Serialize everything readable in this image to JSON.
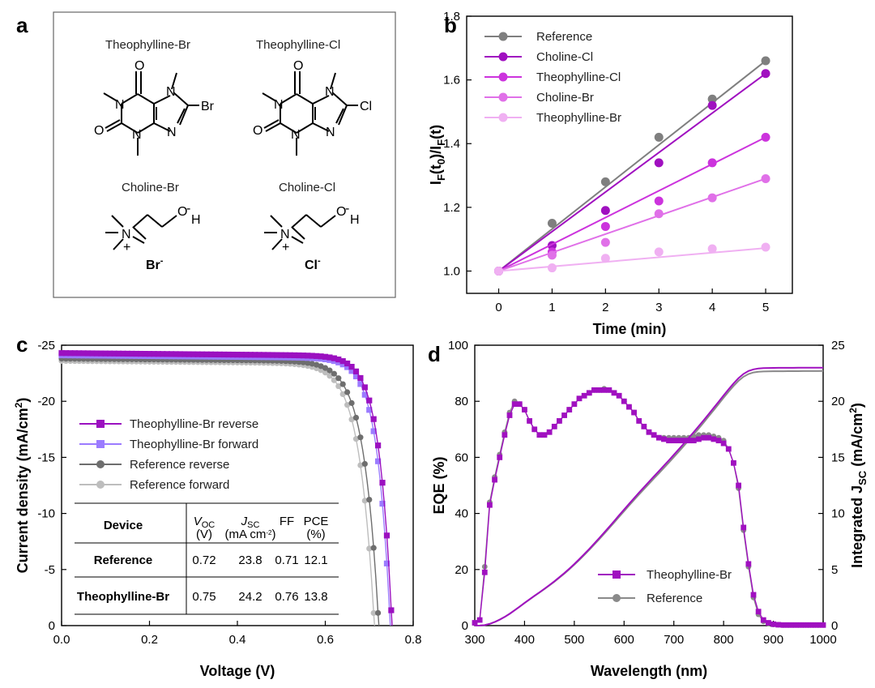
{
  "panels": {
    "a": "a",
    "b": "b",
    "c": "c",
    "d": "d"
  },
  "molecules": {
    "theo_br": {
      "name": "Theophylline-Br",
      "atoms": {
        "o_top": "O",
        "o_left": "O",
        "n1": "N",
        "n3": "N",
        "n7": "N",
        "n9": "N",
        "halogen": "Br"
      },
      "halogen_color": "#8B2BE2"
    },
    "theo_cl": {
      "name": "Theophylline-Cl",
      "atoms": {
        "o_top": "O",
        "o_left": "O",
        "n1": "N",
        "n3": "N",
        "n7": "N",
        "n9": "N",
        "halogen": "Cl"
      },
      "halogen_color": "#3BA8E8"
    },
    "chol_br": {
      "name": "Choline-Br",
      "n": "N",
      "plus": "+",
      "o": "O",
      "h": "H",
      "oh_minus": "-",
      "ion": "Br",
      "ion_sup": "-",
      "ion_color": "#8B2BE2"
    },
    "chol_cl": {
      "name": "Choline-Cl",
      "n": "N",
      "plus": "+",
      "o": "O",
      "h": "H",
      "oh_minus": "-",
      "ion": "Cl",
      "ion_sup": "-",
      "ion_color": "#3BA8E8"
    }
  },
  "chart_data": [
    {
      "id": "b",
      "type": "scatter",
      "title": "",
      "xlabel": "Time (min)",
      "ylabel": {
        "a": "I",
        "a_sub": "F",
        "b": "(t",
        "b_sub": "0",
        "c": ")/I",
        "c_sub": "F",
        "d": "(t)"
      },
      "xlim": [
        -0.6,
        5.5
      ],
      "ylim": [
        0.93,
        1.8
      ],
      "xticks": [
        0,
        1,
        2,
        3,
        4,
        5
      ],
      "xtick_labels": [
        "0",
        "1",
        "2",
        "3",
        "4",
        "5"
      ],
      "yticks": [
        1.0,
        1.2,
        1.4,
        1.6,
        1.8
      ],
      "ytick_labels": [
        "1.0",
        "1.2",
        "1.4",
        "1.6",
        "1.8"
      ],
      "x": [
        0,
        1,
        2,
        3,
        4,
        5
      ],
      "legend_position": "top-left",
      "series": [
        {
          "name": "Reference",
          "color": "#7F7F7F",
          "values": [
            1.0,
            1.15,
            1.28,
            1.42,
            1.54,
            1.66
          ],
          "fit": [
            1.0,
            1.66
          ]
        },
        {
          "name": "Choline-Cl",
          "color": "#A010C0",
          "values": [
            1.0,
            1.08,
            1.19,
            1.34,
            1.52,
            1.62
          ],
          "fit": [
            1.0,
            1.62
          ]
        },
        {
          "name": "Theophylline-Cl",
          "color": "#CC33DD",
          "values": [
            1.0,
            1.06,
            1.14,
            1.22,
            1.34,
            1.42
          ],
          "fit": [
            1.0,
            1.42
          ]
        },
        {
          "name": "Choline-Br",
          "color": "#E070E8",
          "values": [
            1.0,
            1.05,
            1.09,
            1.18,
            1.23,
            1.29
          ],
          "fit": [
            1.0,
            1.29
          ]
        },
        {
          "name": "Theophylline-Br",
          "color": "#F0B0F2",
          "values": [
            1.0,
            1.01,
            1.04,
            1.06,
            1.07,
            1.075
          ],
          "fit": [
            1.0,
            1.072
          ]
        }
      ]
    },
    {
      "id": "c",
      "type": "line",
      "title": "",
      "xlabel": "Voltage (V)",
      "ylabel": "Current density (mA/cm",
      "ylabel_sup": "2",
      "ylabel_end": ")",
      "xlim": [
        0.0,
        0.8
      ],
      "ylim": [
        0,
        25
      ],
      "xticks": [
        0.0,
        0.2,
        0.4,
        0.6,
        0.8
      ],
      "xtick_labels": [
        "0.0",
        "0.2",
        "0.4",
        "0.6",
        "0.8"
      ],
      "yticks": [
        0,
        5,
        10,
        15,
        20,
        25
      ],
      "ytick_labels": [
        "0",
        "-5",
        "-10",
        "-15",
        "-20",
        "-25"
      ],
      "legend_position": "middle-left",
      "series": [
        {
          "name": "Theophylline-Br reverse",
          "color": "#9B10C0",
          "marker": "square",
          "jsc": 24.3,
          "voc": 0.752,
          "knee": 0.66
        },
        {
          "name": "Theophylline-Br forward",
          "color": "#9B7BFF",
          "marker": "square",
          "jsc": 24.1,
          "voc": 0.748,
          "knee": 0.655
        },
        {
          "name": "Reference reverse",
          "color": "#6E6E6E",
          "marker": "circle",
          "jsc": 23.8,
          "voc": 0.722,
          "knee": 0.615
        },
        {
          "name": "Reference forward",
          "color": "#BDBDBD",
          "marker": "circle",
          "jsc": 23.6,
          "voc": 0.712,
          "knee": 0.605
        }
      ],
      "table": {
        "headers": [
          {
            "main": "Device",
            "unit": ""
          },
          {
            "main": "V",
            "sub": "OC",
            "unit": "(V)"
          },
          {
            "main": "J",
            "sub": "SC",
            "unit": "(mA cm",
            "unit_sup": "-2",
            "unit_end": ")"
          },
          {
            "main": "FF",
            "unit": ""
          },
          {
            "main": "PCE",
            "unit": "(%)"
          }
        ],
        "rows": [
          {
            "device": "Reference",
            "color": "#8C8C8C",
            "voc": "0.72",
            "jsc": "23.8",
            "ff": "0.71",
            "pce": "12.1"
          },
          {
            "device": "Theophylline-Br",
            "color": "#9B10C0",
            "voc": "0.75",
            "jsc": "24.2",
            "ff": "0.76",
            "pce": "13.8"
          }
        ]
      }
    },
    {
      "id": "d",
      "type": "line",
      "title": "",
      "xlabel": "Wavelength (nm)",
      "ylabel": "EQE (%)",
      "y2label": "Integrated J",
      "y2label_sub": "SC",
      "y2label_end": " (mA/cm",
      "y2label_sup": "2",
      "y2label_close": ")",
      "xlim": [
        300,
        1000
      ],
      "ylim": [
        0,
        100
      ],
      "y2lim": [
        0,
        25
      ],
      "xticks": [
        300,
        400,
        500,
        600,
        700,
        800,
        900,
        1000
      ],
      "xtick_labels": [
        "300",
        "400",
        "500",
        "600",
        "700",
        "800",
        "900",
        "1000"
      ],
      "yticks": [
        0,
        20,
        40,
        60,
        80,
        100
      ],
      "ytick_labels": [
        "0",
        "20",
        "40",
        "60",
        "80",
        "100"
      ],
      "y2ticks": [
        0,
        5,
        10,
        15,
        20,
        25
      ],
      "y2tick_labels": [
        "0",
        "5",
        "10",
        "15",
        "20",
        "25"
      ],
      "legend_position": "bottom-center",
      "eqe_x": [
        300,
        310,
        320,
        330,
        340,
        350,
        360,
        370,
        380,
        390,
        400,
        410,
        420,
        430,
        440,
        450,
        460,
        470,
        480,
        490,
        500,
        510,
        520,
        530,
        540,
        550,
        560,
        570,
        580,
        590,
        600,
        610,
        620,
        630,
        640,
        650,
        660,
        670,
        680,
        690,
        700,
        710,
        720,
        730,
        740,
        750,
        760,
        770,
        780,
        790,
        800,
        810,
        820,
        830,
        840,
        850,
        860,
        870,
        880,
        890,
        900,
        910,
        920,
        930,
        940,
        950,
        960,
        970,
        980,
        990,
        1000
      ],
      "series": [
        {
          "name": "Theophylline-Br",
          "color": "#A010C0",
          "marker": "square",
          "eqe": [
            1,
            2,
            19,
            43,
            52,
            60,
            68,
            75,
            79,
            79,
            77,
            73,
            70,
            68,
            68,
            69,
            71,
            73,
            75,
            77,
            79,
            81,
            82,
            83,
            84,
            84,
            84,
            84,
            83,
            82,
            80,
            78,
            76,
            73,
            71,
            69,
            68,
            67,
            66.5,
            66,
            66,
            66,
            66,
            66,
            66,
            66.5,
            67,
            67,
            66.5,
            66,
            65,
            63,
            58,
            50,
            35,
            22,
            11,
            5,
            2,
            1,
            0.5,
            0.3,
            0.2,
            0.2,
            0.2,
            0.2,
            0.2,
            0.2,
            0.2,
            0.2,
            0.2
          ],
          "jsc_final": 23.0
        },
        {
          "name": "Reference",
          "color": "#8A8A8A",
          "marker": "circle",
          "eqe": [
            1,
            2,
            21,
            44,
            53,
            61,
            69,
            76,
            80,
            79,
            77,
            73,
            70,
            68,
            68,
            69,
            71,
            73,
            75,
            77,
            79,
            81,
            82,
            83,
            84,
            84,
            84.5,
            84,
            83,
            82,
            80,
            78,
            76,
            73,
            71,
            69,
            68,
            67,
            67,
            67,
            67,
            67,
            67,
            67,
            67.5,
            68,
            68,
            68,
            67.5,
            67,
            66,
            63,
            58,
            49,
            34,
            21,
            10,
            4,
            1.5,
            0.8,
            0.4,
            0.3,
            0.2,
            0.2,
            0.2,
            0.2,
            0.2,
            0.2,
            0.2,
            0.2,
            0.2
          ],
          "jsc_final": 22.7
        }
      ]
    }
  ]
}
